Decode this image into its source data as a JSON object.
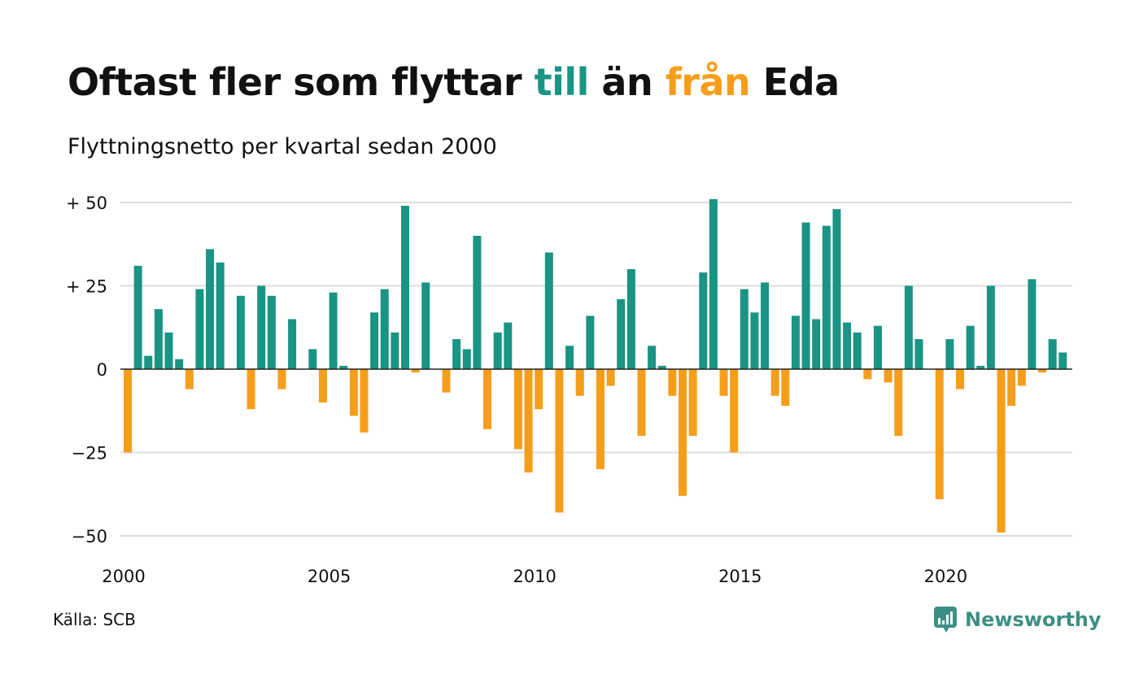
{
  "header": {
    "title_part1": "Oftast fler som flyttar ",
    "title_till": "till",
    "title_mid": " än ",
    "title_fran": "från",
    "title_end": " Eda",
    "subtitle": "Flyttningsnetto per kvartal sedan 2000"
  },
  "footer": {
    "source": "Källa: SCB",
    "brand": "Newsworthy"
  },
  "colors": {
    "positive": "#1a9484",
    "negative": "#f59e1b",
    "grid": "#dddddd",
    "text": "#111111"
  },
  "chart_data": {
    "type": "bar",
    "title": "Oftast fler som flyttar till än från Eda",
    "subtitle": "Flyttningsnetto per kvartal sedan 2000",
    "ylim": [
      -55,
      52
    ],
    "yticks": [
      {
        "value": 50,
        "label": "+ 50"
      },
      {
        "value": 25,
        "label": "+ 25"
      },
      {
        "value": 0,
        "label": "0"
      },
      {
        "value": -25,
        "label": "−25"
      },
      {
        "value": -50,
        "label": "−50"
      }
    ],
    "xticks": [
      {
        "value": 2000,
        "label": "2000"
      },
      {
        "value": 2005,
        "label": "2005"
      },
      {
        "value": 2010,
        "label": "2010"
      },
      {
        "value": 2015,
        "label": "2015"
      },
      {
        "value": 2020,
        "label": "2020"
      }
    ],
    "grid": true,
    "start_year": 2000,
    "values": [
      -25,
      31,
      4,
      18,
      11,
      3,
      -6,
      24,
      36,
      32,
      0,
      22,
      -12,
      25,
      22,
      -6,
      15,
      0,
      6,
      -10,
      23,
      1,
      -14,
      -19,
      17,
      24,
      11,
      49,
      -1,
      26,
      0,
      -7,
      9,
      6,
      40,
      -18,
      11,
      14,
      -24,
      -31,
      -12,
      35,
      -43,
      7,
      -8,
      16,
      -30,
      -5,
      21,
      30,
      -20,
      7,
      1,
      -8,
      -38,
      -20,
      29,
      51,
      -8,
      -25,
      24,
      17,
      26,
      -8,
      -11,
      16,
      44,
      15,
      43,
      48,
      14,
      11,
      -3,
      13,
      -4,
      -20,
      25,
      9,
      0,
      -39,
      9,
      -6,
      13,
      1,
      25,
      -49,
      -11,
      -5,
      27,
      -1,
      9,
      5
    ]
  }
}
